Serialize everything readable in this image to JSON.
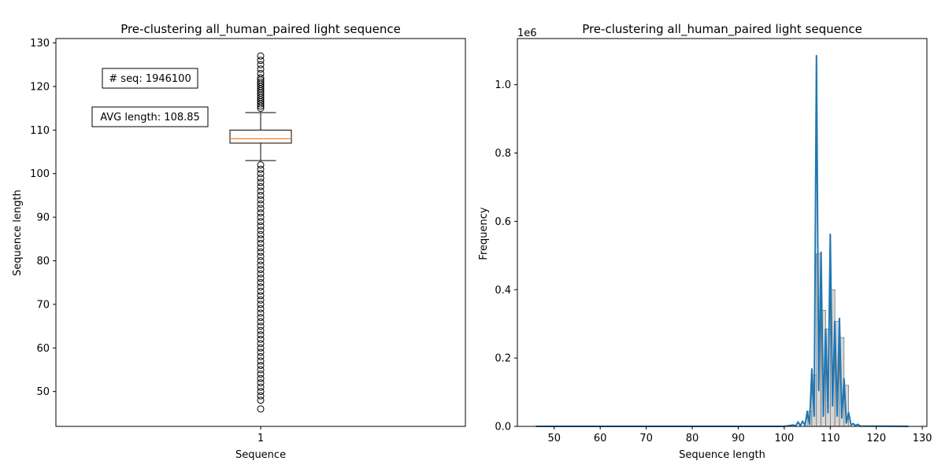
{
  "colors": {
    "box_line": "#000000",
    "median": "#ff7f0e",
    "series": "#1f77b4",
    "hist_fill": "#c8c8c8"
  },
  "chart_data": [
    {
      "type": "box",
      "title": "Pre-clustering all_human_paired light sequence",
      "xlabel": "Sequence",
      "ylabel": "Sequence length",
      "categories": [
        "1"
      ],
      "ylim": [
        42,
        131
      ],
      "yticks": [
        50,
        60,
        70,
        80,
        90,
        100,
        110,
        120,
        130
      ],
      "box": {
        "whisker_low": 103,
        "q1": 107,
        "median": 108,
        "q3": 110,
        "whisker_high": 114
      },
      "outliers_high": [
        115,
        115.5,
        116,
        116.5,
        117,
        117.5,
        118,
        118.5,
        119,
        119.5,
        120,
        120.5,
        121,
        121.5,
        122,
        123,
        124,
        125,
        126,
        127
      ],
      "outliers_low": [
        46,
        48,
        49,
        50,
        51,
        52,
        53,
        54,
        55,
        56,
        57,
        58,
        59,
        60,
        61,
        62,
        63,
        64,
        65,
        66,
        67,
        68,
        69,
        70,
        71,
        72,
        73,
        74,
        75,
        76,
        77,
        78,
        79,
        80,
        81,
        82,
        83,
        84,
        85,
        86,
        87,
        88,
        89,
        90,
        91,
        92,
        93,
        94,
        95,
        96,
        97,
        98,
        99,
        100,
        101,
        102
      ],
      "annotations": [
        "# seq: 1946100",
        "AVG length: 108.85"
      ],
      "grid": false
    },
    {
      "type": "line",
      "title": "Pre-clustering all_human_paired light sequence",
      "xlabel": "Sequence length",
      "ylabel": "Frequency",
      "offset_label": "1e6",
      "xlim": [
        42,
        131
      ],
      "xticks": [
        50,
        60,
        70,
        80,
        90,
        100,
        110,
        120,
        130
      ],
      "ylim": [
        0,
        1.135
      ],
      "yticks": [
        "0.0",
        "0.2",
        "0.4",
        "0.6",
        "0.8",
        "1.0"
      ],
      "x": [
        46,
        100,
        101,
        102,
        102.5,
        103,
        103.5,
        104,
        104.5,
        105,
        105.5,
        106,
        106.5,
        107,
        107.5,
        108,
        108.5,
        109,
        109.5,
        110,
        110.5,
        111,
        111.5,
        112,
        112.5,
        113,
        113.5,
        114,
        114.5,
        115,
        115.5,
        116,
        116.5,
        127
      ],
      "y": [
        0,
        0,
        0.002,
        0.004,
        0.001,
        0.013,
        0.002,
        0.015,
        0.003,
        0.044,
        0.006,
        0.168,
        0.03,
        1.085,
        0.105,
        0.51,
        0.03,
        0.285,
        0.04,
        0.562,
        0.06,
        0.307,
        0.03,
        0.316,
        0.025,
        0.14,
        0.01,
        0.04,
        0.004,
        0.008,
        0.002,
        0.006,
        0.001,
        0
      ],
      "hist_bars": [
        {
          "x": 105,
          "y": 0.044
        },
        {
          "x": 106,
          "y": 0.15
        },
        {
          "x": 107,
          "y": 0.505
        },
        {
          "x": 108,
          "y": 0.34
        },
        {
          "x": 109,
          "y": 0.285
        },
        {
          "x": 110,
          "y": 0.4
        },
        {
          "x": 111,
          "y": 0.307
        },
        {
          "x": 112,
          "y": 0.26
        },
        {
          "x": 113,
          "y": 0.12
        }
      ],
      "grid": false
    }
  ]
}
